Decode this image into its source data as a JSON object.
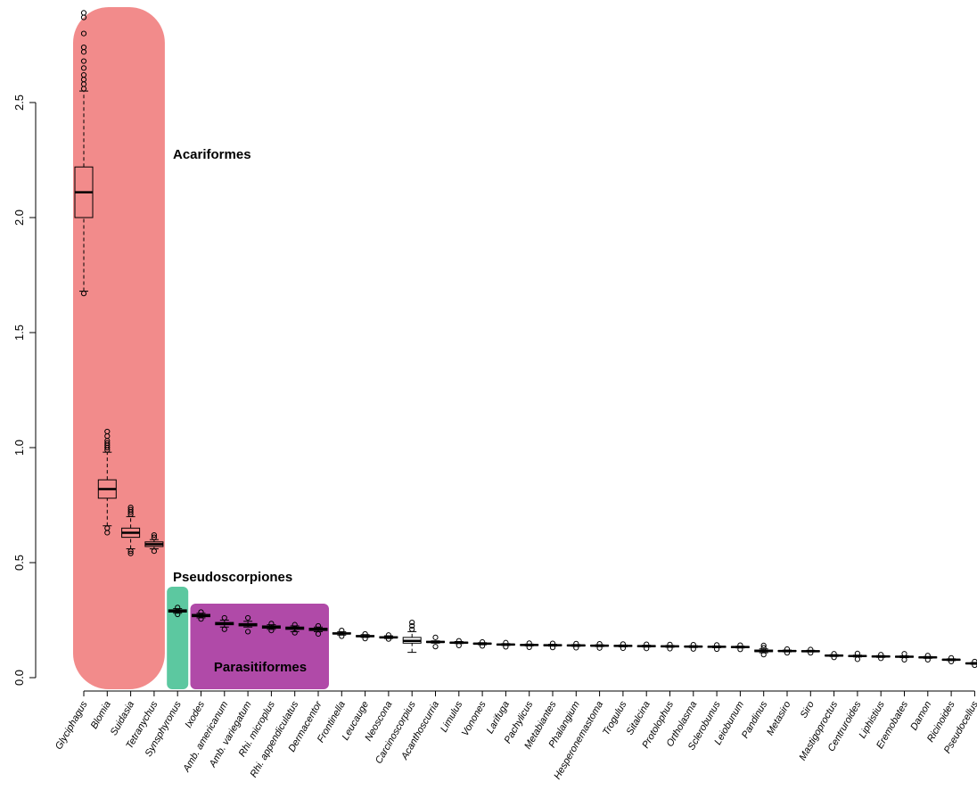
{
  "chart_data": {
    "type": "boxplot",
    "title": "",
    "xlabel": "",
    "ylabel": "",
    "ylim": [
      0,
      2.92
    ],
    "y_ticks": [
      "0.0",
      "0.5",
      "1.0",
      "1.5",
      "2.0",
      "2.5"
    ],
    "grid": false,
    "colors": {
      "Acariformes": "#f28b8b",
      "Pseudoscorpiones": "#5cc8a0",
      "Parasitiformes": "#b04aa8"
    },
    "groups": [
      {
        "label": "Acariformes",
        "from": 0,
        "to": 3
      },
      {
        "label": "Pseudoscorpiones",
        "from": 4,
        "to": 4
      },
      {
        "label": "Parasitiformes",
        "from": 5,
        "to": 10
      }
    ],
    "categories": [
      "Glyciphagus",
      "Blomia",
      "Suidasia",
      "Tetranychus",
      "Synsphyronus",
      "Ixodes",
      "Amb. americanum",
      "Amb. variegatum",
      "Rhi. microplus",
      "Rhi. appendiculatus",
      "Dermacentor",
      "Frontinella",
      "Leucauge",
      "Neoscona",
      "Carcinoscorpius",
      "Acanthoscurria",
      "Limulus",
      "Vonones",
      "Larifuga",
      "Pachylicus",
      "Metabiantes",
      "Phalangium",
      "Hesperonemastoma",
      "Trogulus",
      "Sitalcina",
      "Protolophus",
      "Ortholasma",
      "Sclerobunus",
      "Leiobunum",
      "Pandinus",
      "Metasiro",
      "Siro",
      "Mastigoproctus",
      "Centruroides",
      "Liphistius",
      "Eremobates",
      "Damon",
      "Ricinoides",
      "Pseudocellus"
    ],
    "boxes": [
      {
        "whisker_low": 1.68,
        "q1": 2.0,
        "median": 2.11,
        "q3": 2.22,
        "whisker_high": 2.55,
        "outliers": [
          1.67,
          2.56,
          2.58,
          2.6,
          2.62,
          2.65,
          2.68,
          2.72,
          2.74,
          2.8,
          2.87,
          2.89
        ]
      },
      {
        "whisker_low": 0.66,
        "q1": 0.78,
        "median": 0.82,
        "q3": 0.86,
        "whisker_high": 0.98,
        "outliers": [
          0.63,
          0.65,
          0.99,
          1.0,
          1.01,
          1.02,
          1.03,
          1.05,
          1.07
        ]
      },
      {
        "whisker_low": 0.56,
        "q1": 0.61,
        "median": 0.63,
        "q3": 0.65,
        "whisker_high": 0.7,
        "outliers": [
          0.54,
          0.55,
          0.71,
          0.72,
          0.73,
          0.74
        ]
      },
      {
        "whisker_low": 0.56,
        "q1": 0.57,
        "median": 0.58,
        "q3": 0.59,
        "whisker_high": 0.6,
        "outliers": [
          0.55,
          0.61,
          0.62
        ]
      },
      {
        "whisker_low": 0.28,
        "q1": 0.285,
        "median": 0.29,
        "q3": 0.295,
        "whisker_high": 0.3,
        "outliers": [
          0.275,
          0.305
        ]
      },
      {
        "whisker_low": 0.26,
        "q1": 0.265,
        "median": 0.27,
        "q3": 0.275,
        "whisker_high": 0.28,
        "outliers": [
          0.255,
          0.285
        ]
      },
      {
        "whisker_low": 0.22,
        "q1": 0.23,
        "median": 0.235,
        "q3": 0.24,
        "whisker_high": 0.25,
        "outliers": [
          0.21,
          0.26
        ]
      },
      {
        "whisker_low": 0.22,
        "q1": 0.225,
        "median": 0.23,
        "q3": 0.235,
        "whisker_high": 0.245,
        "outliers": [
          0.2,
          0.26
        ]
      },
      {
        "whisker_low": 0.21,
        "q1": 0.215,
        "median": 0.22,
        "q3": 0.225,
        "whisker_high": 0.23,
        "outliers": [
          0.205,
          0.235
        ]
      },
      {
        "whisker_low": 0.2,
        "q1": 0.21,
        "median": 0.215,
        "q3": 0.22,
        "whisker_high": 0.225,
        "outliers": [
          0.195,
          0.23
        ]
      },
      {
        "whisker_low": 0.2,
        "q1": 0.205,
        "median": 0.21,
        "q3": 0.215,
        "whisker_high": 0.22,
        "outliers": [
          0.19,
          0.225
        ]
      },
      {
        "whisker_low": 0.185,
        "q1": 0.19,
        "median": 0.192,
        "q3": 0.195,
        "whisker_high": 0.2,
        "outliers": [
          0.18,
          0.205
        ]
      },
      {
        "whisker_low": 0.175,
        "q1": 0.178,
        "median": 0.18,
        "q3": 0.183,
        "whisker_high": 0.187,
        "outliers": [
          0.17,
          0.19
        ]
      },
      {
        "whisker_low": 0.17,
        "q1": 0.173,
        "median": 0.175,
        "q3": 0.178,
        "whisker_high": 0.182,
        "outliers": [
          0.168,
          0.185
        ]
      },
      {
        "whisker_low": 0.11,
        "q1": 0.15,
        "median": 0.16,
        "q3": 0.175,
        "whisker_high": 0.2,
        "outliers": [
          0.21,
          0.225,
          0.24
        ]
      },
      {
        "whisker_low": 0.15,
        "q1": 0.153,
        "median": 0.155,
        "q3": 0.158,
        "whisker_high": 0.16,
        "outliers": [
          0.135,
          0.175
        ]
      },
      {
        "whisker_low": 0.148,
        "q1": 0.15,
        "median": 0.152,
        "q3": 0.154,
        "whisker_high": 0.157,
        "outliers": [
          0.14,
          0.16
        ]
      },
      {
        "whisker_low": 0.143,
        "q1": 0.146,
        "median": 0.148,
        "q3": 0.15,
        "whisker_high": 0.152,
        "outliers": [
          0.138,
          0.155
        ]
      },
      {
        "whisker_low": 0.14,
        "q1": 0.142,
        "median": 0.144,
        "q3": 0.146,
        "whisker_high": 0.148,
        "outliers": [
          0.134,
          0.152
        ]
      },
      {
        "whisker_low": 0.138,
        "q1": 0.14,
        "median": 0.142,
        "q3": 0.144,
        "whisker_high": 0.146,
        "outliers": [
          0.132,
          0.15
        ]
      },
      {
        "whisker_low": 0.137,
        "q1": 0.139,
        "median": 0.141,
        "q3": 0.143,
        "whisker_high": 0.145,
        "outliers": [
          0.131,
          0.149
        ]
      },
      {
        "whisker_low": 0.136,
        "q1": 0.138,
        "median": 0.14,
        "q3": 0.142,
        "whisker_high": 0.144,
        "outliers": [
          0.13,
          0.148
        ]
      },
      {
        "whisker_low": 0.135,
        "q1": 0.137,
        "median": 0.139,
        "q3": 0.141,
        "whisker_high": 0.143,
        "outliers": [
          0.129,
          0.147
        ]
      },
      {
        "whisker_low": 0.134,
        "q1": 0.136,
        "median": 0.138,
        "q3": 0.14,
        "whisker_high": 0.142,
        "outliers": [
          0.128,
          0.146
        ]
      },
      {
        "whisker_low": 0.133,
        "q1": 0.135,
        "median": 0.137,
        "q3": 0.139,
        "whisker_high": 0.141,
        "outliers": [
          0.127,
          0.145
        ]
      },
      {
        "whisker_low": 0.132,
        "q1": 0.134,
        "median": 0.136,
        "q3": 0.138,
        "whisker_high": 0.14,
        "outliers": [
          0.126,
          0.144
        ]
      },
      {
        "whisker_low": 0.131,
        "q1": 0.133,
        "median": 0.135,
        "q3": 0.137,
        "whisker_high": 0.139,
        "outliers": [
          0.125,
          0.143
        ]
      },
      {
        "whisker_low": 0.13,
        "q1": 0.132,
        "median": 0.134,
        "q3": 0.136,
        "whisker_high": 0.138,
        "outliers": [
          0.124,
          0.142
        ]
      },
      {
        "whisker_low": 0.129,
        "q1": 0.131,
        "median": 0.133,
        "q3": 0.135,
        "whisker_high": 0.137,
        "outliers": [
          0.123,
          0.141
        ]
      },
      {
        "whisker_low": 0.108,
        "q1": 0.113,
        "median": 0.116,
        "q3": 0.12,
        "whisker_high": 0.125,
        "outliers": [
          0.1,
          0.13,
          0.14
        ]
      },
      {
        "whisker_low": 0.112,
        "q1": 0.114,
        "median": 0.116,
        "q3": 0.118,
        "whisker_high": 0.12,
        "outliers": [
          0.108,
          0.124
        ]
      },
      {
        "whisker_low": 0.112,
        "q1": 0.114,
        "median": 0.115,
        "q3": 0.117,
        "whisker_high": 0.119,
        "outliers": [
          0.108,
          0.122
        ]
      },
      {
        "whisker_low": 0.092,
        "q1": 0.094,
        "median": 0.096,
        "q3": 0.098,
        "whisker_high": 0.1,
        "outliers": [
          0.088,
          0.104
        ]
      },
      {
        "whisker_low": 0.09,
        "q1": 0.092,
        "median": 0.094,
        "q3": 0.096,
        "whisker_high": 0.098,
        "outliers": [
          0.08,
          0.105
        ]
      },
      {
        "whisker_low": 0.088,
        "q1": 0.09,
        "median": 0.092,
        "q3": 0.094,
        "whisker_high": 0.096,
        "outliers": [
          0.084,
          0.1
        ]
      },
      {
        "whisker_low": 0.087,
        "q1": 0.089,
        "median": 0.091,
        "q3": 0.093,
        "whisker_high": 0.095,
        "outliers": [
          0.078,
          0.104
        ]
      },
      {
        "whisker_low": 0.084,
        "q1": 0.086,
        "median": 0.088,
        "q3": 0.09,
        "whisker_high": 0.092,
        "outliers": [
          0.078,
          0.096
        ]
      },
      {
        "whisker_low": 0.074,
        "q1": 0.076,
        "median": 0.078,
        "q3": 0.08,
        "whisker_high": 0.082,
        "outliers": [
          0.07,
          0.086
        ]
      },
      {
        "whisker_low": 0.058,
        "q1": 0.06,
        "median": 0.062,
        "q3": 0.064,
        "whisker_high": 0.066,
        "outliers": [
          0.054,
          0.07
        ]
      }
    ]
  }
}
